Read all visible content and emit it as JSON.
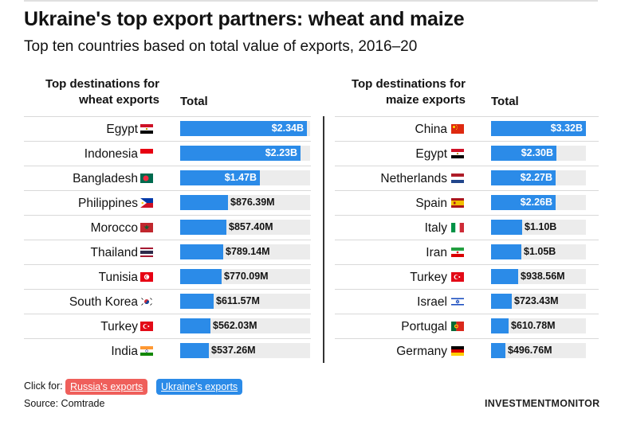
{
  "title": "Ukraine's top export partners: wheat and maize",
  "subtitle": "Top ten countries based on total value of exports, 2016–20",
  "footer": {
    "click_for": "Click for:",
    "russia_link": "Russia's exports",
    "ukraine_link": "Ukraine's exports",
    "source": "Source: Comtrade",
    "logo": "INVESTMENTMONITOR"
  },
  "colors": {
    "bar": "#2b8be8",
    "track": "#ececec",
    "russia_pill": "#ef5f5b",
    "ukraine_pill": "#2b8be8"
  },
  "chart_data": [
    {
      "type": "bar",
      "orientation": "horizontal",
      "country_header": "Top destinations for wheat exports",
      "total_header": "Total",
      "unit": "USD",
      "categories": [
        "Egypt",
        "Indonesia",
        "Bangladesh",
        "Philippines",
        "Morocco",
        "Thailand",
        "Tunisia",
        "South Korea",
        "Turkey",
        "India"
      ],
      "values": [
        2340000000,
        2230000000,
        1470000000,
        876390000,
        857400000,
        789140000,
        770090000,
        611570000,
        562030000,
        537260000
      ],
      "labels": [
        "$2.34B",
        "$2.23B",
        "$1.47B",
        "$876.39M",
        "$857.40M",
        "$789.14M",
        "$770.09M",
        "$611.57M",
        "$562.03M",
        "$537.26M"
      ],
      "flags": [
        "egypt-flag",
        "indonesia-flag",
        "bangladesh-flag",
        "philippines-flag",
        "morocco-flag",
        "thailand-flag",
        "tunisia-flag",
        "south-korea-flag",
        "turkey-flag",
        "india-flag"
      ],
      "xlim": [
        0,
        2400000000
      ]
    },
    {
      "type": "bar",
      "orientation": "horizontal",
      "country_header": "Top destinations for maize exports",
      "total_header": "Total",
      "unit": "USD",
      "categories": [
        "China",
        "Egypt",
        "Netherlands",
        "Spain",
        "Italy",
        "Iran",
        "Turkey",
        "Israel",
        "Portugal",
        "Germany"
      ],
      "values": [
        3320000000,
        2300000000,
        2270000000,
        2260000000,
        1100000000,
        1050000000,
        938560000,
        723430000,
        610780000,
        496760000
      ],
      "labels": [
        "$3.32B",
        "$2.30B",
        "$2.27B",
        "$2.26B",
        "$1.10B",
        "$1.05B",
        "$938.56M",
        "$723.43M",
        "$610.78M",
        "$496.76M"
      ],
      "flags": [
        "china-flag",
        "egypt-flag",
        "netherlands-flag",
        "spain-flag",
        "italy-flag",
        "iran-flag",
        "turkey-flag",
        "israel-flag",
        "portugal-flag",
        "germany-flag"
      ],
      "xlim": [
        0,
        3320000000
      ]
    }
  ]
}
